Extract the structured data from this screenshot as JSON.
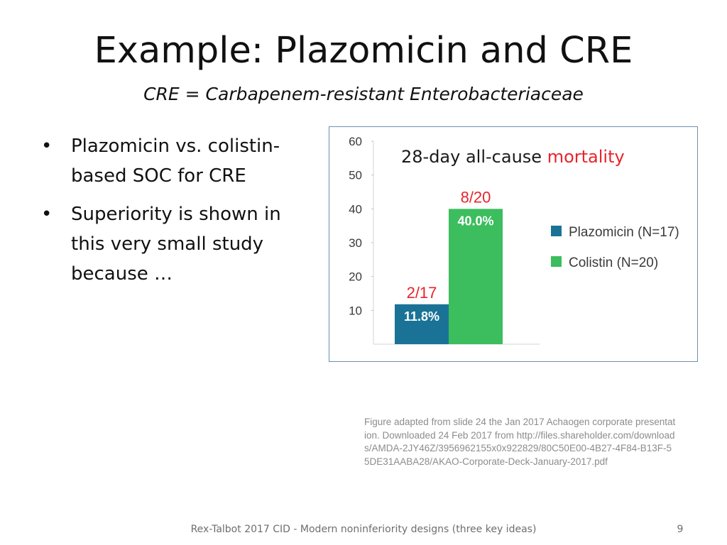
{
  "slide": {
    "title": "Example: Plazomicin and CRE",
    "subtitle": "CRE = Carbapenem-resistant Enterobacteriaceae",
    "bullets": [
      {
        "marker": "•",
        "text": "Plazomicin vs. colistin-based SOC for CRE"
      },
      {
        "marker": "•",
        "text": "Superiority is shown in this very small study because …"
      }
    ],
    "caption": "Figure adapted from slide 24 the Jan 2017 Achaogen corporate presentation. Downloaded 24 Feb 2017 from http://files.shareholder.com/downloads/AMDA-2JY46Z/3956962155x0x922829/80C50E00-4B27-4F84-B13F-55DE31AABA28/AKAO-Corporate-Deck-January-2017.pdf",
    "footer": "Rex-Talbot 2017 CID - Modern noninferiority designs (three key ideas)",
    "page_number": "9"
  },
  "chart_data": {
    "type": "bar",
    "title_prefix": "28-day all-cause ",
    "title_highlight": "mortality",
    "title_highlight_color": "#e8242b",
    "ylim": [
      0,
      60
    ],
    "yticks": [
      10,
      20,
      30,
      40,
      50,
      60
    ],
    "legend_position": "right",
    "series": [
      {
        "name": "Plazomicin (N=17)",
        "value": 11.8,
        "data_label": "11.8%",
        "count_label": "2/17",
        "color": "#1a7396"
      },
      {
        "name": "Colistin (N=20)",
        "value": 40.0,
        "data_label": "40.0%",
        "count_label": "8/20",
        "color": "#3cbd5e"
      }
    ],
    "count_label_color": "#e8242b"
  }
}
